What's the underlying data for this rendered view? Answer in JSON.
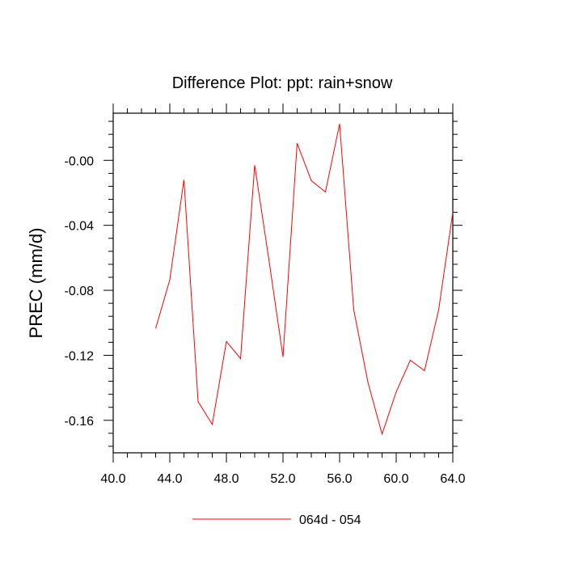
{
  "chart_data": {
    "type": "line",
    "title": "Difference Plot: ppt: rain+snow",
    "xlabel": "",
    "ylabel": "PREC  (mm/d)",
    "xlim": [
      40,
      64
    ],
    "ylim": [
      -0.18,
      0.029
    ],
    "x_ticks": [
      40,
      44,
      48,
      52,
      56,
      60,
      64
    ],
    "x_tick_labels": [
      "40.0",
      "44.0",
      "48.0",
      "52.0",
      "56.0",
      "60.0",
      "64.0"
    ],
    "y_ticks": [
      0.0,
      -0.04,
      -0.08,
      -0.12,
      -0.16
    ],
    "y_tick_labels": [
      "-0.00",
      "-0.04",
      "-0.08",
      "-0.12",
      "-0.16"
    ],
    "grid": false,
    "legend_position": "bottom-center",
    "x": [
      43,
      44,
      45,
      46,
      47,
      48,
      49,
      50,
      51,
      52,
      53,
      54,
      55,
      56,
      57,
      58,
      59,
      60,
      61,
      62,
      63,
      64
    ],
    "series": [
      {
        "name": "064d - 054",
        "color": "#ff0000",
        "values": [
          -0.1035,
          -0.0735,
          -0.012,
          -0.1485,
          -0.1625,
          -0.1115,
          -0.122,
          -0.003,
          -0.061,
          -0.121,
          0.0105,
          -0.0125,
          -0.0195,
          0.0225,
          -0.092,
          -0.1365,
          -0.1685,
          -0.1425,
          -0.123,
          -0.1295,
          -0.092,
          -0.032
        ]
      }
    ]
  }
}
